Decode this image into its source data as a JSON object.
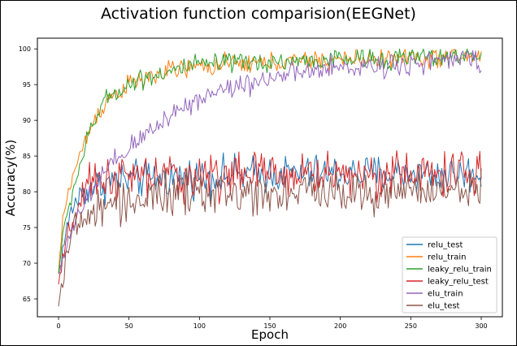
{
  "chart_data": {
    "type": "line",
    "title": "Activation function comparision(EEGNet)",
    "xlabel": "Epoch",
    "ylabel": "Accuracy(%)",
    "xlim": [
      -15,
      315
    ],
    "ylim": [
      62.5,
      101.5
    ],
    "xticks": [
      0,
      50,
      100,
      150,
      200,
      250,
      300
    ],
    "yticks": [
      65,
      70,
      75,
      80,
      85,
      90,
      95,
      100
    ],
    "grid": false,
    "legend_position": "lower right",
    "epochs": 300,
    "series": [
      {
        "name": "relu_test",
        "color": "#1f77b4",
        "anchors": [
          [
            0,
            68.5
          ],
          [
            5,
            74
          ],
          [
            10,
            78
          ],
          [
            20,
            80.5
          ],
          [
            40,
            81.5
          ],
          [
            80,
            82
          ],
          [
            150,
            82.5
          ],
          [
            300,
            82.5
          ]
        ],
        "noise": 1.3
      },
      {
        "name": "relu_train",
        "color": "#ff7f0e",
        "anchors": [
          [
            0,
            68.5
          ],
          [
            3,
            76
          ],
          [
            8,
            81
          ],
          [
            15,
            85
          ],
          [
            25,
            90
          ],
          [
            35,
            93
          ],
          [
            50,
            95
          ],
          [
            80,
            97
          ],
          [
            120,
            97.8
          ],
          [
            200,
            98.5
          ],
          [
            300,
            99
          ]
        ],
        "noise": 0.7
      },
      {
        "name": "leaky_relu_train",
        "color": "#2ca02c",
        "anchors": [
          [
            0,
            68.5
          ],
          [
            3,
            74
          ],
          [
            10,
            80
          ],
          [
            20,
            87
          ],
          [
            30,
            92
          ],
          [
            40,
            94
          ],
          [
            60,
            96
          ],
          [
            100,
            97.8
          ],
          [
            200,
            98.5
          ],
          [
            300,
            99
          ]
        ],
        "noise": 0.7
      },
      {
        "name": "leaky_relu_test",
        "color": "#d62728",
        "anchors": [
          [
            0,
            67
          ],
          [
            5,
            72
          ],
          [
            10,
            76
          ],
          [
            20,
            80
          ],
          [
            30,
            82
          ],
          [
            60,
            82
          ],
          [
            150,
            82.5
          ],
          [
            300,
            82.5
          ]
        ],
        "noise": 1.6
      },
      {
        "name": "elu_train",
        "color": "#9467bd",
        "anchors": [
          [
            0,
            68.5
          ],
          [
            5,
            72
          ],
          [
            15,
            77
          ],
          [
            30,
            82
          ],
          [
            50,
            86
          ],
          [
            80,
            91
          ],
          [
            110,
            94
          ],
          [
            150,
            96
          ],
          [
            200,
            97.3
          ],
          [
            250,
            98
          ],
          [
            300,
            98.7
          ]
        ],
        "noise": 0.8
      },
      {
        "name": "elu_test",
        "color": "#8c564b",
        "anchors": [
          [
            0,
            64
          ],
          [
            5,
            71
          ],
          [
            10,
            74
          ],
          [
            20,
            76.5
          ],
          [
            40,
            78.5
          ],
          [
            80,
            79.5
          ],
          [
            150,
            80
          ],
          [
            300,
            80
          ]
        ],
        "noise": 1.5
      }
    ]
  }
}
